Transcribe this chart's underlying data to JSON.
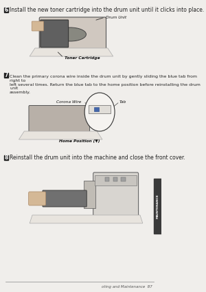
{
  "bg_color": "#f0eeeb",
  "page_bg": "#f0eeeb",
  "sidebar_color": "#3a3a3a",
  "sidebar_text": "MAINTENANCE",
  "sidebar_text_color": "#ffffff",
  "footer_line_color": "#888888",
  "footer_text": "oting and Maintenance  87",
  "footer_text_color": "#555555",
  "step6_num": "6",
  "step6_text": "Install the new toner cartridge into the drum unit until it clicks into place.",
  "step7_num": "7",
  "step7_text": "Clean the primary corona wire inside the drum unit by gently sliding the blue tab from right to\nleft several times. Return the blue tab to the home position before reinstalling the drum unit\nassembly.",
  "step8_num": "8",
  "step8_text": "Reinstall the drum unit into the machine and close the front cover.",
  "label_drum_unit": "Drum Unit",
  "label_toner_cartridge": "Toner Cartridge",
  "label_corona_wire": "Corona Wire",
  "label_tab": "Tab",
  "label_home_position": "Home Position (▼)",
  "text_color": "#222222",
  "label_color": "#111111",
  "font_size_step": 5.5,
  "font_size_body": 4.5,
  "font_size_label": 4.2,
  "font_size_footer": 4.0
}
